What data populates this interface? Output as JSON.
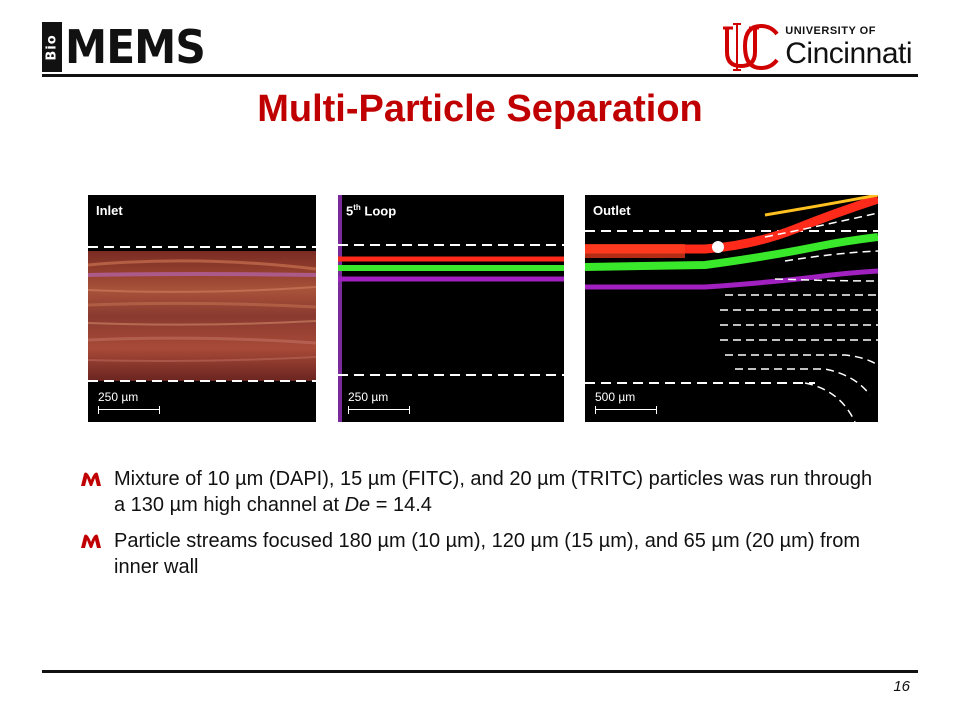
{
  "header": {
    "logo_bio": "Bio",
    "logo_mems": "MEMS",
    "university_small": "UNIVERSITY OF",
    "university_name": "Cincinnati"
  },
  "slide": {
    "title": "Multi-Particle Separation",
    "page_number": "16"
  },
  "figures": [
    {
      "label": "Inlet",
      "scale": "250 µm"
    },
    {
      "label_main": "5",
      "label_sup": "th",
      "label_rest": " Loop",
      "scale": "250 µm"
    },
    {
      "label": "Outlet",
      "scale": "500 µm"
    }
  ],
  "bullets": [
    {
      "text_before_italic": "Mixture of 10 µm (DAPI), 15 µm (FITC), and 20 µm  (TRITC) particles was run through a 130 µm high channel at ",
      "italic": "De",
      "text_after_italic": " = 14.4"
    },
    {
      "text": "Particle streams focused 180 µm (10 µm), 120 µm (15 µm), and 65 µm (20 µm) from inner wall"
    }
  ],
  "colors": {
    "title": "#c00000",
    "bullet": "#c00000",
    "stream_red": "#ff2a1a",
    "stream_green": "#39e82a",
    "stream_purple": "#a020c0"
  }
}
